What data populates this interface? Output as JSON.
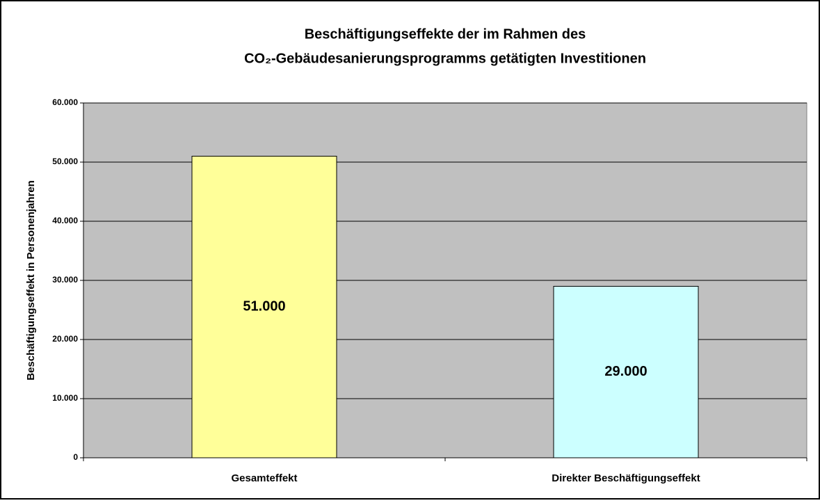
{
  "chart_data": {
    "type": "bar",
    "title": [
      "Beschäftigungseffekte der im Rahmen des",
      "CO₂-Gebäudesanierungsprogramms getätigten Investitionen"
    ],
    "y_label": "Beschäftigungseffekt in Personenjahren",
    "categories": [
      "Gesamteffekt",
      "Direkter Beschäftigungseffekt"
    ],
    "values": [
      51000,
      29000
    ],
    "value_labels": [
      "51.000",
      "29.000"
    ],
    "colors": [
      "#ffff99",
      "#ccffff"
    ],
    "ylim": [
      0,
      60000
    ],
    "yticks": [
      0,
      {
        "value": 10000,
        "label": "10.000"
      },
      {
        "value": 20000,
        "label": "20.000"
      },
      {
        "value": 30000,
        "label": "30.000"
      },
      {
        "value": 40000,
        "label": "40.000"
      },
      {
        "value": 50000,
        "label": "50.000"
      },
      {
        "value": 60000,
        "label": "60.000"
      }
    ],
    "grid": true
  }
}
